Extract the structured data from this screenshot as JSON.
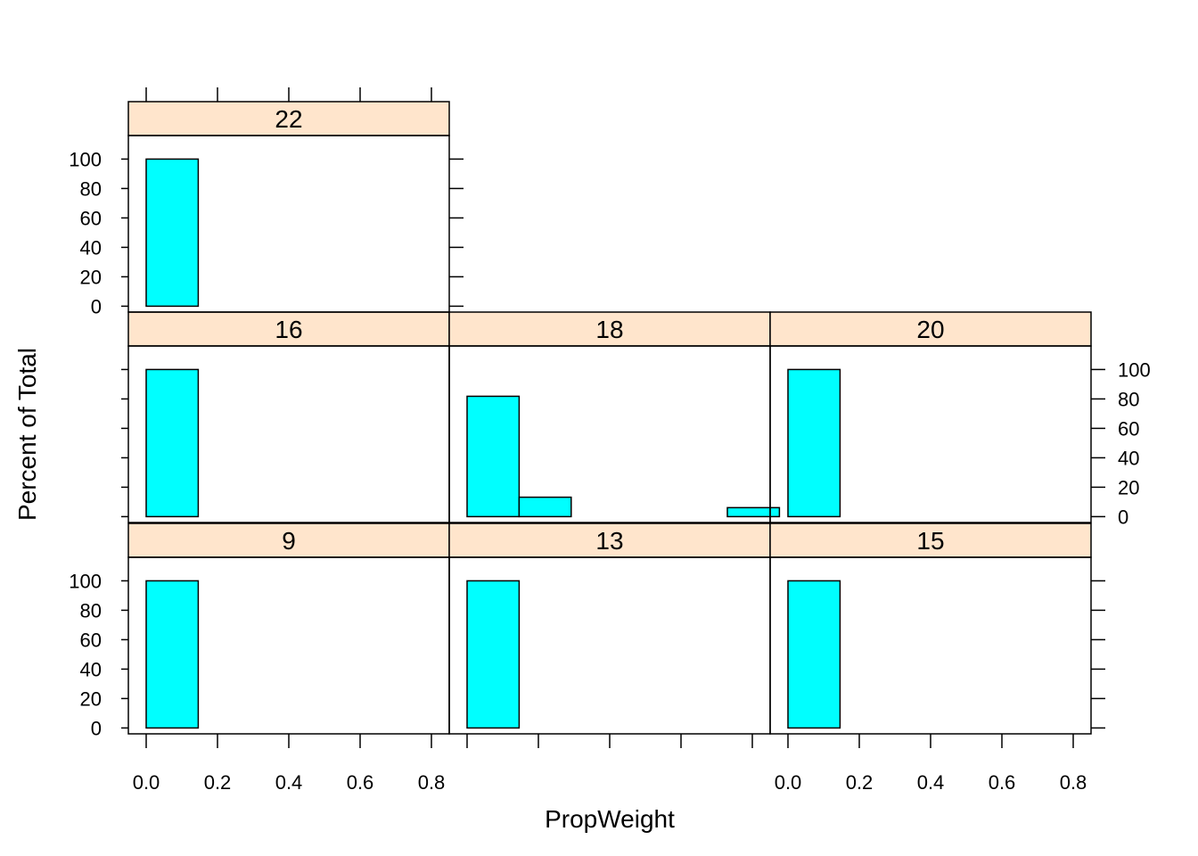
{
  "chart_data": {
    "type": "bar",
    "xlabel": "PropWeight",
    "ylabel": "Percent of Total",
    "xlim": [
      -0.05,
      0.85
    ],
    "ylim": [
      -4,
      116
    ],
    "x_ticks": [
      0.0,
      0.2,
      0.4,
      0.6,
      0.8
    ],
    "x_tick_labels": [
      "0.0",
      "0.2",
      "0.4",
      "0.6",
      "0.8"
    ],
    "y_ticks": [
      0,
      20,
      40,
      60,
      80,
      100
    ],
    "y_tick_labels": [
      "0",
      "20",
      "40",
      "60",
      "80",
      "100"
    ],
    "bin_edges": [
      0.0,
      0.146,
      0.292,
      0.438,
      0.584,
      0.73,
      0.876
    ],
    "colors": {
      "bar_fill": "#00ffff",
      "bar_stroke": "#000000",
      "strip_fill": "#ffe5cc",
      "frame": "#000000"
    },
    "panels": [
      {
        "label": "9",
        "values": [
          100,
          0,
          0,
          0,
          0,
          0
        ]
      },
      {
        "label": "13",
        "values": [
          100,
          0,
          0,
          0,
          0,
          0
        ]
      },
      {
        "label": "15",
        "values": [
          100,
          0,
          0,
          0,
          0,
          0
        ]
      },
      {
        "label": "16",
        "values": [
          100,
          0,
          0,
          0,
          0,
          0
        ]
      },
      {
        "label": "18",
        "values": [
          81.8,
          13.2,
          0,
          0,
          0,
          6.1
        ]
      },
      {
        "label": "20",
        "values": [
          100,
          0,
          0,
          0,
          0,
          0
        ]
      },
      {
        "label": "22",
        "values": [
          100,
          0,
          0,
          0,
          0,
          0
        ]
      }
    ]
  }
}
